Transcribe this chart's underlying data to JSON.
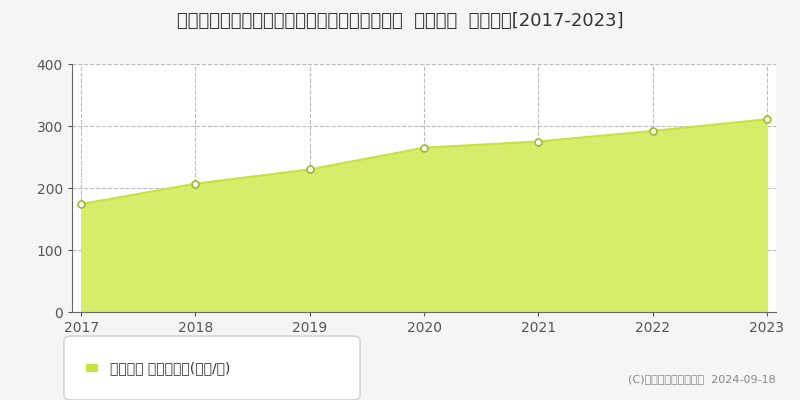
{
  "title": "北海道札幌市中央区大通西１８丁目１番２９外  公示地価  地価推移[2017-2023]",
  "years": [
    2017,
    2018,
    2019,
    2020,
    2021,
    2022,
    2023
  ],
  "values": [
    174,
    207,
    230,
    265,
    275,
    292,
    311
  ],
  "line_color": "#c8e040",
  "fill_color": "#d4ed6a",
  "marker_color": "#ffffff",
  "marker_edge_color": "#a0b830",
  "plot_bg_color": "#ffffff",
  "fig_bg_color": "#f5f5f5",
  "grid_color": "#bbbbbb",
  "spine_color": "#666666",
  "ylim": [
    0,
    400
  ],
  "yticks": [
    0,
    100,
    200,
    300,
    400
  ],
  "legend_label": "公示地価 平均坪単価(万円/坪)",
  "legend_marker_color": "#c8e040",
  "copyright_text": "(C)土地価格ドットコム  2024-09-18",
  "title_fontsize": 13,
  "axis_fontsize": 10,
  "legend_fontsize": 10,
  "copyright_fontsize": 8
}
